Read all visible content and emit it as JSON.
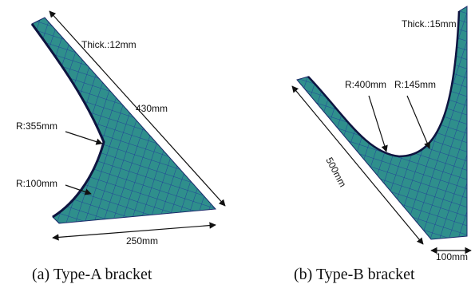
{
  "panels": [
    {
      "caption": "(a)  Type-A  bracket",
      "annotations": [
        "Thick.:12mm",
        "430mm",
        "R:355mm",
        "R:100mm",
        "250mm"
      ]
    },
    {
      "caption": "(b)  Type-B  bracket",
      "annotations": [
        "Thick.:15mm",
        "R:400mm",
        "R:145mm",
        "500mm",
        "100mm"
      ]
    }
  ]
}
